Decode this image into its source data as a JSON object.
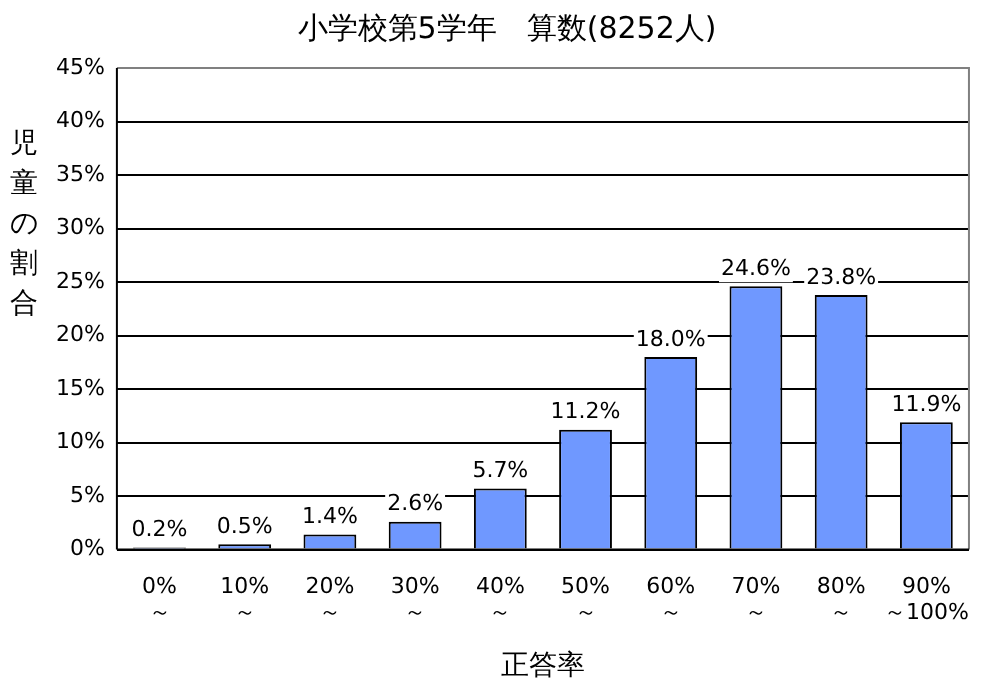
{
  "chart_data": {
    "type": "bar",
    "title": "小学校第5学年　算数(8252人)",
    "xlabel": "正答率",
    "ylabel": "児童の割合",
    "categories": [
      "0%\n～",
      "10%\n～",
      "20%\n～",
      "30%\n～",
      "40%\n～",
      "50%\n～",
      "60%\n～",
      "70%\n～",
      "80%\n～",
      "90%\n～100%"
    ],
    "values": [
      0.2,
      0.5,
      1.4,
      2.6,
      5.7,
      11.2,
      18.0,
      24.6,
      23.8,
      11.9
    ],
    "value_labels": [
      "0.2%",
      "0.5%",
      "1.4%",
      "2.6%",
      "5.7%",
      "11.2%",
      "18.0%",
      "24.6%",
      "23.8%",
      "11.9%"
    ],
    "color": "#6f98ff",
    "ylim": [
      0,
      45
    ],
    "yticks": [
      {
        "value": 0,
        "label": "0%"
      },
      {
        "value": 5,
        "label": "5%"
      },
      {
        "value": 10,
        "label": "10%"
      },
      {
        "value": 15,
        "label": "15%"
      },
      {
        "value": 20,
        "label": "20%"
      },
      {
        "value": 25,
        "label": "25%"
      },
      {
        "value": 30,
        "label": "30%"
      },
      {
        "value": 35,
        "label": "35%"
      },
      {
        "value": 40,
        "label": "40%"
      },
      {
        "value": 45,
        "label": "45%"
      }
    ],
    "grid": "y",
    "legend": false
  }
}
